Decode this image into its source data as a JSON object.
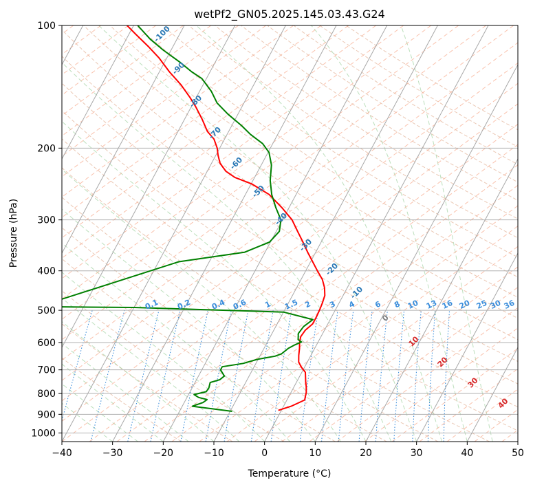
{
  "chart_data": {
    "type": "line",
    "subtype": "skew-t log-p diagram",
    "title": "wetPf2_GN05.2025.145.03.43.G24",
    "xlabel": "Temperature (°C)",
    "ylabel": "Pressure (hPa)",
    "xlim": [
      -40,
      50
    ],
    "ylim": [
      1050,
      100
    ],
    "y_scale": "log",
    "grid": true,
    "x_ticks": [
      -40,
      -30,
      -20,
      -10,
      0,
      10,
      20,
      30,
      40,
      50
    ],
    "x_tick_labels": [
      "−40",
      "−30",
      "−20",
      "−10",
      "0",
      "10",
      "20",
      "30",
      "40",
      "50"
    ],
    "y_ticks": [
      100,
      200,
      300,
      400,
      500,
      600,
      700,
      800,
      900,
      1000
    ],
    "y_tick_labels": [
      "100",
      "200",
      "300",
      "400",
      "500",
      "600",
      "700",
      "800",
      "900",
      "1000"
    ],
    "series": [
      {
        "role": "temperature",
        "color": "#ff0000",
        "points": [
          [
            -0.6,
            880
          ],
          [
            1.5,
            860
          ],
          [
            3.5,
            830
          ],
          [
            3.0,
            795
          ],
          [
            2.4,
            770
          ],
          [
            1.8,
            750
          ],
          [
            0.7,
            710
          ],
          [
            -0.6,
            690
          ],
          [
            -1.7,
            670
          ],
          [
            -2.4,
            645
          ],
          [
            -3.0,
            620
          ],
          [
            -3.6,
            600
          ],
          [
            -4.0,
            580
          ],
          [
            -3.8,
            560
          ],
          [
            -3.0,
            540
          ],
          [
            -3.0,
            520
          ],
          [
            -3.1,
            500
          ],
          [
            -3.3,
            480
          ],
          [
            -3.6,
            460
          ],
          [
            -4.5,
            440
          ],
          [
            -5.8,
            420
          ],
          [
            -7.7,
            400
          ],
          [
            -9.6,
            380
          ],
          [
            -11.6,
            360
          ],
          [
            -13.6,
            340
          ],
          [
            -15.8,
            320
          ],
          [
            -18.1,
            300
          ],
          [
            -21.4,
            280
          ],
          [
            -25.3,
            260
          ],
          [
            -29.8,
            245
          ],
          [
            -33.9,
            236
          ],
          [
            -36.3,
            228
          ],
          [
            -38.3,
            218
          ],
          [
            -39.6,
            208
          ],
          [
            -40.5,
            200
          ],
          [
            -42.1,
            190
          ],
          [
            -44.2,
            182
          ],
          [
            -46.5,
            170
          ],
          [
            -49.2,
            158
          ],
          [
            -51.3,
            150
          ],
          [
            -54.3,
            140
          ],
          [
            -58.0,
            130
          ],
          [
            -61.6,
            120
          ],
          [
            -64.7,
            113
          ],
          [
            -68.7,
            105
          ],
          [
            -71.3,
            100
          ]
        ]
      },
      {
        "role": "dewpoint",
        "color": "#008000",
        "points": [
          [
            -9.6,
            885
          ],
          [
            -18.0,
            860
          ],
          [
            -16.3,
            842
          ],
          [
            -15.8,
            828
          ],
          [
            -17.7,
            818
          ],
          [
            -18.9,
            805
          ],
          [
            -16.8,
            792
          ],
          [
            -16.7,
            775
          ],
          [
            -17.0,
            752
          ],
          [
            -15.4,
            740
          ],
          [
            -14.9,
            725
          ],
          [
            -16.3,
            700
          ],
          [
            -16.3,
            688
          ],
          [
            -12.5,
            675
          ],
          [
            -10.2,
            660
          ],
          [
            -7.0,
            648
          ],
          [
            -6.0,
            640
          ],
          [
            -5.2,
            620
          ],
          [
            -4.3,
            608
          ],
          [
            -3.3,
            598
          ],
          [
            -4.2,
            590
          ],
          [
            -4.8,
            570
          ],
          [
            -4.5,
            548
          ],
          [
            -3.4,
            527
          ],
          [
            -10.0,
            505
          ],
          [
            -40.0,
            492
          ],
          [
            -59.0,
            490
          ],
          [
            -36.0,
            380
          ],
          [
            -24.0,
            360
          ],
          [
            -20.2,
            340
          ],
          [
            -19.4,
            320
          ],
          [
            -20.3,
            300
          ],
          [
            -22.6,
            280
          ],
          [
            -24.8,
            260
          ],
          [
            -26.6,
            240
          ],
          [
            -28.0,
            220
          ],
          [
            -29.8,
            205
          ],
          [
            -32.0,
            195
          ],
          [
            -35.4,
            185
          ],
          [
            -38.1,
            176
          ],
          [
            -42.0,
            165
          ],
          [
            -45.3,
            155
          ],
          [
            -47.7,
            145
          ],
          [
            -50.9,
            135
          ],
          [
            -53.6,
            130
          ],
          [
            -57.0,
            123
          ],
          [
            -61.5,
            115
          ],
          [
            -65.3,
            108
          ],
          [
            -69.2,
            100
          ]
        ]
      }
    ],
    "dry_adiabat_labels": [
      "-100",
      "-90",
      "-80",
      "-70",
      "-60",
      "-50",
      "-40",
      "-30",
      "-20",
      "-10"
    ],
    "mixing_ratio_labels": [
      "0.1",
      "0.2",
      "0.4",
      "0.6",
      "1",
      "1.5",
      "2",
      "3",
      "4",
      "6",
      "8",
      "10",
      "13",
      "16",
      "20",
      "25",
      "30",
      "36"
    ],
    "moist_adiabat_labels": [
      "0",
      "10",
      "20",
      "30",
      "40"
    ]
  }
}
